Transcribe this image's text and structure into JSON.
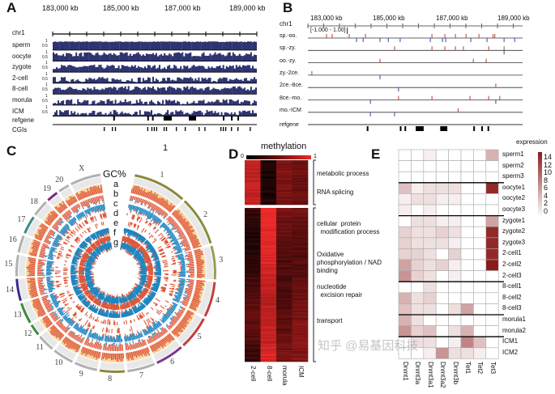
{
  "panels": {
    "A": "A",
    "B": "B",
    "C": "C",
    "D": "D",
    "E": "E"
  },
  "panelA": {
    "axis_labels": [
      "183,000 kb",
      "185,000 kb",
      "187,000 kb",
      "189,000 kb"
    ],
    "chrom_label": "chr1",
    "scale_top": "1",
    "scale_mid": "0.5",
    "tracks": [
      {
        "name": "sperm",
        "mean": 0.95,
        "var": 0.04
      },
      {
        "name": "oocyte",
        "mean": 0.78,
        "var": 0.25
      },
      {
        "name": "zygote",
        "mean": 0.6,
        "var": 0.25
      },
      {
        "name": "2-cell",
        "mean": 0.42,
        "var": 0.3
      },
      {
        "name": "8-cell",
        "mean": 0.66,
        "var": 0.25
      },
      {
        "name": "morula",
        "mean": 0.38,
        "var": 0.3
      },
      {
        "name": "ICM",
        "mean": 0.42,
        "var": 0.3
      }
    ],
    "refgene_label": "refgene",
    "cgi_label": "CGIs",
    "refgene_kb": [
      [
        184780,
        184830
      ],
      [
        185780,
        185800
      ],
      [
        185920,
        185960
      ],
      [
        186260,
        186500
      ],
      [
        187000,
        187214
      ],
      [
        188000,
        188040
      ],
      [
        188240,
        188260
      ],
      [
        188430,
        188440
      ]
    ],
    "cgi_kb": [
      184500,
      184740,
      184830,
      185780,
      185900,
      185970,
      186040,
      186260,
      186330,
      186620,
      186880,
      187290,
      187460,
      187930,
      188000,
      188070,
      188240,
      188430,
      188790
    ]
  },
  "panelB": {
    "axis_labels": [
      "183,000 kb",
      "185,000 kb",
      "187,000 kb",
      "189,000 kb"
    ],
    "chrom_label": "chr1",
    "range_label": "[-1.000 - 1.00]",
    "refgene_label": "refgene",
    "rows": [
      {
        "name": "sp.-oo.",
        "up": [
          183563,
          183735,
          184250,
          184740,
          186750,
          187140,
          187460,
          187780,
          188170,
          188600,
          188650
        ],
        "down": [
          184470,
          184670,
          185180,
          185430,
          185790,
          186700,
          187070,
          187165,
          187925,
          188415,
          188930,
          189250
        ]
      },
      {
        "name": "sp.-zy.",
        "up": [
          185620,
          186750,
          187140,
          187460,
          187700,
          188465,
          188930
        ],
        "down": [
          188930
        ]
      },
      {
        "name": "oo.-zy.",
        "up": [
          185180,
          188000,
          188390
        ],
        "down": []
      },
      {
        "name": "zy.-2ce.",
        "up": [
          183120
        ],
        "down": [
          185180
        ]
      },
      {
        "name": "2ce.-8ce.",
        "up": [
          188680
        ],
        "down": [
          185740
        ]
      },
      {
        "name": "8ce.-mo.",
        "up": [
          185740,
          186750,
          187900,
          188465,
          188800
        ],
        "down": [
          184890,
          188680
        ]
      },
      {
        "name": "mo.-ICM",
        "up": [
          187540
        ],
        "down": [
          184890,
          185620
        ]
      }
    ]
  },
  "panelC": {
    "top_number": "1",
    "track_labels": [
      "GC%",
      "a",
      "b",
      "c",
      "d",
      "e",
      "f",
      "g"
    ],
    "chromosomes": [
      {
        "name": "1",
        "size": 280,
        "color": "#8a8a3a"
      },
      {
        "name": "2",
        "size": 260,
        "color": "#8a8a3a"
      },
      {
        "name": "3",
        "size": 175,
        "color": "#9a9a5a"
      },
      {
        "name": "4",
        "size": 185,
        "color": "#c04040"
      },
      {
        "name": "5",
        "size": 175,
        "color": "#c04040"
      },
      {
        "name": "6",
        "size": 150,
        "color": "#7a3a8a"
      },
      {
        "name": "7",
        "size": 145,
        "color": "#b0b0b0"
      },
      {
        "name": "8",
        "size": 130,
        "color": "#8a8a3a"
      },
      {
        "name": "9",
        "size": 120,
        "color": "#b0b0b0"
      },
      {
        "name": "10",
        "size": 110,
        "color": "#b0b0b0"
      },
      {
        "name": "11",
        "size": 90,
        "color": "#b0b0b0"
      },
      {
        "name": "12",
        "size": 60,
        "color": "#3a8a3a"
      },
      {
        "name": "13",
        "size": 110,
        "color": "#3a8a3a"
      },
      {
        "name": "14",
        "size": 115,
        "color": "#3a2a8a"
      },
      {
        "name": "15",
        "size": 110,
        "color": "#b0b0b0"
      },
      {
        "name": "16",
        "size": 90,
        "color": "#b0b0b0"
      },
      {
        "name": "17",
        "size": 95,
        "color": "#3a8a8a"
      },
      {
        "name": "18",
        "size": 87,
        "color": "#b0b0b0"
      },
      {
        "name": "19",
        "size": 60,
        "color": "#7a2a8a"
      },
      {
        "name": "20",
        "size": 57,
        "color": "#b0b0b0"
      },
      {
        "name": "X",
        "size": 160,
        "color": "#b0b0b0"
      }
    ]
  },
  "panelD": {
    "title": "methylation",
    "scale_min": "0",
    "scale_max": "1",
    "columns": [
      "2-cell",
      "8-cell",
      "morula",
      "ICM"
    ],
    "clusters": [
      {
        "rows": 50,
        "mean": [
          0.85,
          0.15,
          0.55,
          0.5
        ],
        "terms": [
          "metabolic process",
          "RNA splicing"
        ]
      },
      {
        "rows": 170,
        "mean": [
          0.3,
          0.9,
          0.45,
          0.5
        ],
        "terms": [
          "cellular  protein\n  modification process",
          "Oxidative\nphosphorylation / NAD\nbinding",
          "nucleotide\n  excision repair",
          "transport"
        ]
      }
    ]
  },
  "chart_data": {
    "type": "heatmap",
    "title": "expression",
    "colorbar_ticks": [
      "14",
      "12",
      "10",
      "8",
      "6",
      "4",
      "2",
      "0"
    ],
    "vmin": 0,
    "vmax": 15,
    "columns": [
      "Dnmt1",
      "Dnmt3a",
      "Dnmt3a1",
      "Dnmt3a2",
      "Dnmt3b",
      "Tet1",
      "Tet2",
      "Tet3"
    ],
    "rows": [
      "sperm1",
      "sperm2",
      "sperm3",
      "oocyte1",
      "oocyte2",
      "oocyte3",
      "zygote1",
      "zygote2",
      "zygote3",
      "2-cell1",
      "2-cell2",
      "2-cell3",
      "8-cell1",
      "8-cell2",
      "8-cell3",
      "morula1",
      "morula2",
      "ICM1",
      "ICM2"
    ],
    "group_breaks_after": [
      3,
      6,
      12,
      15,
      17
    ],
    "values": [
      [
        0,
        0,
        1,
        0,
        0,
        0,
        0,
        5
      ],
      [
        0,
        0,
        0,
        0,
        0,
        0,
        0,
        0
      ],
      [
        0,
        0,
        0,
        0,
        0,
        0,
        0,
        0
      ],
      [
        4,
        1,
        2,
        2,
        2,
        0,
        0,
        14
      ],
      [
        1,
        2,
        2,
        1,
        1,
        0,
        0,
        0
      ],
      [
        1,
        0,
        1,
        0,
        0,
        0,
        0,
        0
      ],
      [
        0,
        2,
        2,
        1,
        1,
        0,
        0,
        6
      ],
      [
        3,
        2,
        2,
        3,
        2,
        0,
        0,
        14
      ],
      [
        3,
        2,
        2,
        2,
        1,
        0,
        0,
        14
      ],
      [
        3,
        3,
        2,
        0,
        3,
        0,
        0,
        14
      ],
      [
        6,
        3,
        2,
        3,
        1,
        0,
        0,
        15
      ],
      [
        7,
        3,
        2,
        0,
        1,
        0,
        0,
        0
      ],
      [
        0,
        0,
        2,
        0,
        0,
        0,
        0,
        0
      ],
      [
        5,
        2,
        3,
        0,
        0,
        0,
        0,
        0
      ],
      [
        4,
        2,
        2,
        0,
        2,
        6,
        0,
        0
      ],
      [
        5,
        2,
        0,
        0,
        0,
        0,
        0,
        0
      ],
      [
        7,
        3,
        4,
        0,
        2,
        5,
        0,
        0
      ],
      [
        0,
        2,
        2,
        0,
        1,
        8,
        4,
        0
      ],
      [
        0,
        0,
        1,
        7,
        2,
        2,
        1,
        0
      ]
    ]
  },
  "watermark": "知乎 @易基因科技",
  "colors": {
    "trackA": "#2e3470",
    "up": "#c0392b",
    "down": "#2c4a9a",
    "gc_bg": "#f6d9a4",
    "ring_red": "#e0583a",
    "ring_blue": "#1f86c0",
    "heat_max": "#8b1a1a"
  }
}
